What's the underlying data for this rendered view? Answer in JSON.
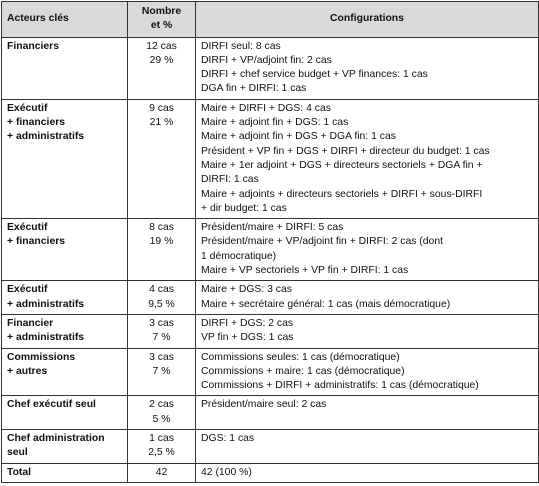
{
  "table": {
    "header": [
      [
        "Acteurs clés"
      ],
      [
        "Nombre",
        "et %"
      ],
      [
        "Configurations"
      ]
    ],
    "rows": [
      [
        [
          "Financiers"
        ],
        [
          "12 cas",
          "29 %"
        ],
        [
          "DIRFI seul: 8 cas",
          "DIRFI + VP/adjoint fin: 2 cas",
          "DIRFI + chef service budget + VP finances: 1 cas",
          "DGA fin + DIRFI: 1 cas"
        ]
      ],
      [
        [
          "Exécutif",
          "+ financiers",
          "+ administratifs"
        ],
        [
          "9 cas",
          "21 %"
        ],
        [
          "Maire + DIRFI + DGS: 4 cas",
          "Maire + adjoint fin + DGS: 1 cas",
          "Maire + adjoint fin + DGS + DGA fin: 1 cas",
          "Président + VP fin + DGS + DIRFI + directeur du budget: 1 cas",
          "Maire + 1er adjoint + DGS + directeurs sectoriels + DGA fin +",
          "DIRFI: 1 cas",
          "Maire + adjoints + directeurs sectoriels + DIRFI + sous-DIRFI",
          "+ dir budget: 1 cas"
        ]
      ],
      [
        [
          "Exécutif",
          "+ financiers"
        ],
        [
          "8 cas",
          "19 %"
        ],
        [
          "Président/maire + DIRFI: 5 cas",
          "Président/maire + VP/adjoint fin + DIRFI: 2 cas (dont",
          "1 démocratique)",
          "Maire + VP sectoriels + VP fin + DIRFI: 1 cas"
        ]
      ],
      [
        [
          "Exécutif",
          "+ administratifs"
        ],
        [
          "4 cas",
          "9,5 %"
        ],
        [
          "Maire + DGS: 3 cas",
          "Maire + secrétaire général: 1 cas (mais démocratique)"
        ]
      ],
      [
        [
          "Financier",
          "+ administratifs"
        ],
        [
          "3 cas",
          "7 %"
        ],
        [
          "DIRFI + DGS: 2 cas",
          "VP fin + DGS: 1 cas"
        ]
      ],
      [
        [
          "Commissions",
          "+ autres"
        ],
        [
          "3 cas",
          "7 %"
        ],
        [
          "Commissions seules: 1 cas (démocratique)",
          "Commissions + maire: 1 cas (démocratique)",
          "Commissions + DIRFI + administratifs: 1 cas (démocratique)"
        ]
      ],
      [
        [
          "Chef exécutif seul"
        ],
        [
          "2 cas",
          "5 %"
        ],
        [
          "Président/maire seul: 2 cas"
        ]
      ],
      [
        [
          "Chef administration",
          "seul"
        ],
        [
          "1 cas",
          "2,5 %"
        ],
        [
          "DGS: 1 cas"
        ]
      ],
      [
        [
          "Total"
        ],
        [
          "42"
        ],
        [
          "42 (100 %)"
        ]
      ]
    ]
  }
}
